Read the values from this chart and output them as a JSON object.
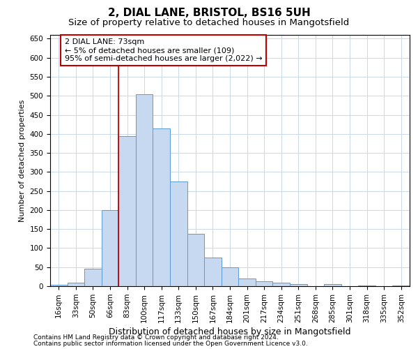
{
  "title1": "2, DIAL LANE, BRISTOL, BS16 5UH",
  "title2": "Size of property relative to detached houses in Mangotsfield",
  "xlabel": "Distribution of detached houses by size in Mangotsfield",
  "ylabel": "Number of detached properties",
  "categories": [
    "16sqm",
    "33sqm",
    "50sqm",
    "66sqm",
    "83sqm",
    "100sqm",
    "117sqm",
    "133sqm",
    "150sqm",
    "167sqm",
    "184sqm",
    "201sqm",
    "217sqm",
    "234sqm",
    "251sqm",
    "268sqm",
    "285sqm",
    "301sqm",
    "318sqm",
    "335sqm",
    "352sqm"
  ],
  "values": [
    4,
    10,
    45,
    200,
    395,
    505,
    415,
    275,
    138,
    75,
    50,
    20,
    12,
    9,
    6,
    0,
    6,
    0,
    2,
    0,
    2
  ],
  "bar_color": "#c6d9f0",
  "bar_edge_color": "#5b9bd5",
  "vline_x": 3.5,
  "vline_color": "#c00000",
  "annotation_text": "2 DIAL LANE: 73sqm\n← 5% of detached houses are smaller (109)\n95% of semi-detached houses are larger (2,022) →",
  "box_edge_color": "#c00000",
  "ylim": [
    0,
    660
  ],
  "yticks": [
    0,
    50,
    100,
    150,
    200,
    250,
    300,
    350,
    400,
    450,
    500,
    550,
    600,
    650
  ],
  "footer1": "Contains HM Land Registry data © Crown copyright and database right 2024.",
  "footer2": "Contains public sector information licensed under the Open Government Licence v3.0.",
  "bg_color": "#ffffff",
  "grid_color": "#c8d8e8",
  "title1_fontsize": 11,
  "title2_fontsize": 9.5,
  "xlabel_fontsize": 9,
  "ylabel_fontsize": 8,
  "tick_fontsize": 7.5,
  "annotation_fontsize": 8,
  "footer_fontsize": 6.5
}
